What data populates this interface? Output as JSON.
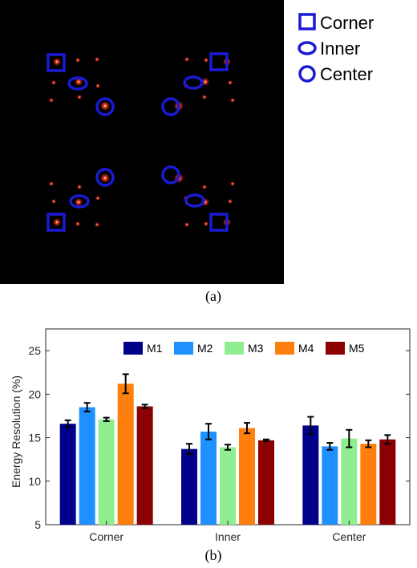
{
  "figure_a": {
    "caption": "(a)",
    "legend": [
      {
        "label": "Corner",
        "marker": "square"
      },
      {
        "label": "Inner",
        "marker": "ellipse"
      },
      {
        "label": "Center",
        "marker": "circle"
      }
    ],
    "marker_color": "#1a1ad6",
    "background_color": "#000000",
    "spot_color": "#e8301a"
  },
  "figure_b": {
    "caption": "(b)"
  },
  "chart_data": {
    "type": "bar",
    "title": "",
    "xlabel": "",
    "ylabel": "Energy Resolution (%)",
    "ylim": [
      5,
      27.5
    ],
    "yticks": [
      5,
      10,
      15,
      20,
      25
    ],
    "categories": [
      "Corner",
      "Inner",
      "Center"
    ],
    "legend_position": "top-right",
    "legend_orientation": "horizontal",
    "grid": false,
    "series": [
      {
        "name": "M1",
        "color": "#00008b",
        "values": [
          16.6,
          13.7,
          16.4
        ],
        "errors": [
          0.4,
          0.6,
          1.0
        ]
      },
      {
        "name": "M2",
        "color": "#1e90ff",
        "values": [
          18.5,
          15.7,
          14.0
        ],
        "errors": [
          0.5,
          0.9,
          0.4
        ]
      },
      {
        "name": "M3",
        "color": "#90ee90",
        "values": [
          17.1,
          13.9,
          14.9
        ],
        "errors": [
          0.2,
          0.3,
          1.0
        ]
      },
      {
        "name": "M4",
        "color": "#ff7f0e",
        "values": [
          21.2,
          16.1,
          14.3
        ],
        "errors": [
          1.1,
          0.6,
          0.4
        ]
      },
      {
        "name": "M5",
        "color": "#8b0000",
        "values": [
          18.6,
          14.7,
          14.8
        ],
        "errors": [
          0.2,
          0.1,
          0.5
        ]
      }
    ]
  }
}
